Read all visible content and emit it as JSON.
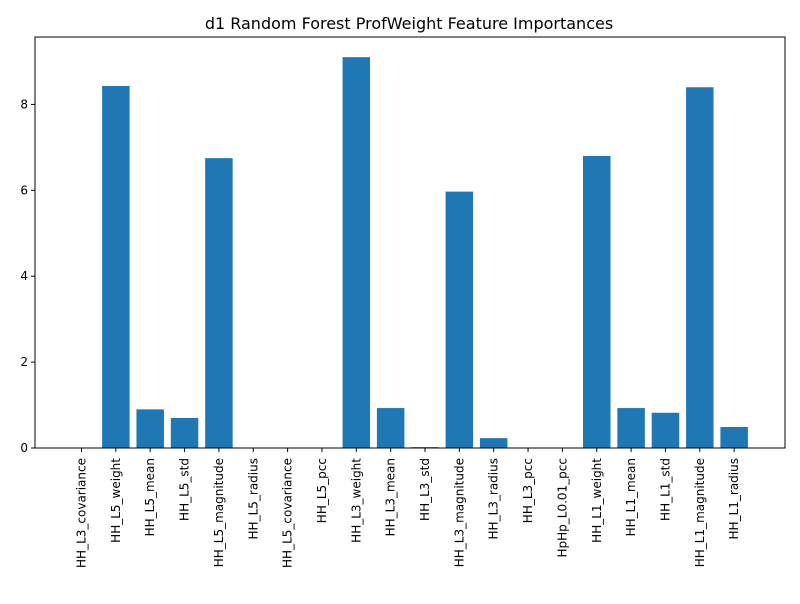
{
  "chart_data": {
    "type": "bar",
    "title": "d1 Random Forest ProfWeight Feature Importances",
    "xlabel": "",
    "ylabel": "",
    "categories": [
      "HH_L3_covariance",
      "HH_L5_weight",
      "HH_L5_mean",
      "HH_L5_std",
      "HH_L5_magnitude",
      "HH_L5_radius",
      "HH_L5_covariance",
      "HH_L5_pcc",
      "HH_L3_weight",
      "HH_L3_mean",
      "HH_L3_std",
      "HH_L3_magnitude",
      "HH_L3_radius",
      "HH_L3_pcc",
      "HpHp_L0.01_pcc",
      "HH_L1_weight",
      "HH_L1_mean",
      "HH_L1_std",
      "HH_L1_magnitude",
      "HH_L1_radius"
    ],
    "values": [
      0.0,
      8.43,
      0.9,
      0.7,
      6.75,
      0.0,
      0.0,
      0.0,
      9.1,
      0.93,
      0.02,
      5.97,
      0.23,
      0.0,
      0.0,
      6.8,
      0.93,
      0.82,
      8.4,
      0.49
    ],
    "ylim": [
      0,
      9.57
    ],
    "yticks": [
      0,
      2,
      4,
      6,
      8
    ],
    "bar_color": "#1f77b4",
    "grid": false,
    "legend": "none"
  }
}
